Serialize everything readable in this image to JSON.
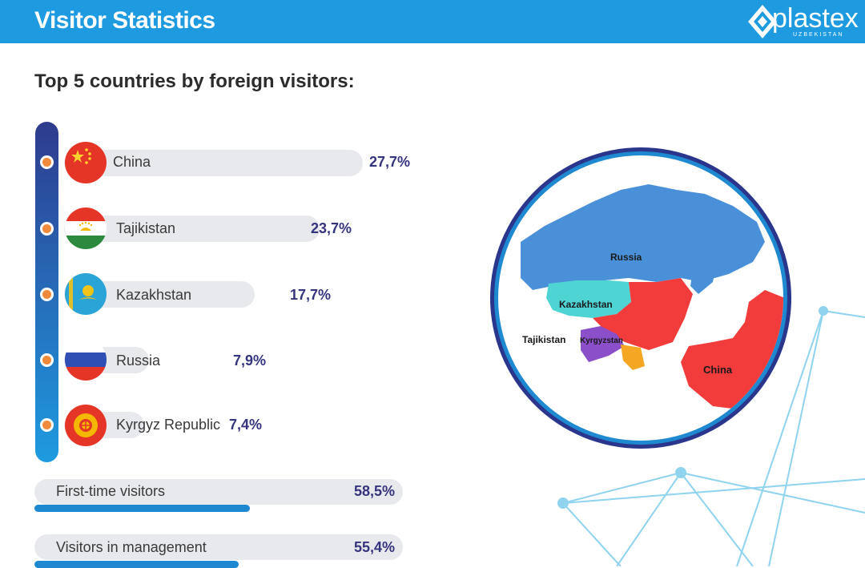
{
  "header": {
    "title": "Visitor Statistics",
    "logo_text": "plastex",
    "logo_subtext": "UZBEKISTAN"
  },
  "subtitle": "Top 5 countries by foreign visitors:",
  "chart_data": [
    {
      "type": "bar",
      "title": "Top 5 countries by foreign visitors:",
      "categories": [
        "China",
        "Tajikistan",
        "Kazakhstan",
        "Russia",
        "Kyrgyz Republic"
      ],
      "values": [
        27.7,
        23.7,
        17.7,
        7.9,
        7.4
      ],
      "value_labels": [
        "27,7%",
        "23,7%",
        "17,7%",
        "7,9%",
        "7,4%"
      ],
      "unit": "%",
      "orientation": "horizontal"
    },
    {
      "type": "bar",
      "categories": [
        "First-time visitors",
        "Visitors in management"
      ],
      "values": [
        58.5,
        55.4
      ],
      "value_labels": [
        "58,5%",
        "55,4%"
      ],
      "unit": "%",
      "orientation": "horizontal"
    }
  ],
  "map": {
    "labels": [
      "Russia",
      "Kazakhstan",
      "Tajikistan",
      "Kyrgyzstan",
      "China"
    ]
  },
  "colors": {
    "header": "#1e9be0",
    "accent_dark": "#35347e",
    "node": "#f08a3a",
    "russia": "#4a90d9",
    "kazakhstan": "#4fd4d4",
    "china": "#f23b3b",
    "kyrgyzstan": "#8a4fc9",
    "india": "#f5a623"
  }
}
